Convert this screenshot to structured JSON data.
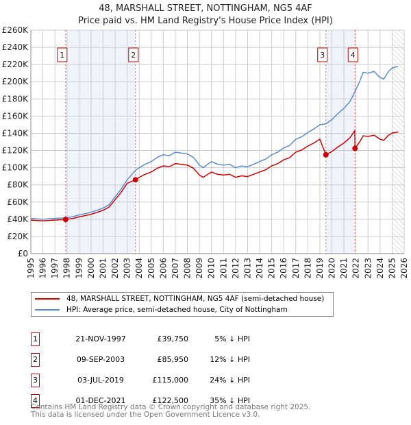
{
  "chart_data": {
    "type": "line",
    "title": "48, MARSHALL STREET, NOTTINGHAM, NG5 4AF",
    "subtitle": "Price paid vs. HM Land Registry's House Price Index (HPI)",
    "xlim": [
      1995,
      2026
    ],
    "ylim": [
      0,
      260000
    ],
    "yticks": [
      "£0",
      "£20K",
      "£40K",
      "£60K",
      "£80K",
      "£100K",
      "£120K",
      "£140K",
      "£160K",
      "£180K",
      "£200K",
      "£220K",
      "£240K",
      "£260K"
    ],
    "xticks": [
      "1995",
      "1996",
      "1997",
      "1998",
      "1999",
      "2000",
      "2001",
      "2002",
      "2003",
      "2004",
      "2005",
      "2006",
      "2007",
      "2008",
      "2009",
      "2010",
      "2011",
      "2012",
      "2013",
      "2014",
      "2015",
      "2016",
      "2017",
      "2018",
      "2019",
      "2020",
      "2021",
      "2022",
      "2023",
      "2024",
      "2025",
      "2026"
    ],
    "hpi_series": {
      "name": "HPI: Average price, semi-detached house, City of Nottingham",
      "color": "#5b8bd0",
      "x": [
        1995,
        1996,
        1997,
        1997.9,
        1998.5,
        1999,
        2000,
        2001,
        2001.5,
        2002,
        2002.5,
        2003,
        2003.7,
        2004,
        2004.5,
        2005,
        2005.5,
        2006,
        2006.5,
        2007,
        2007.5,
        2008,
        2008.5,
        2009,
        2009.3,
        2010,
        2010.5,
        2011,
        2011.5,
        2012,
        2012.5,
        2013,
        2013.5,
        2014,
        2014.5,
        2015,
        2015.5,
        2016,
        2016.5,
        2017,
        2017.5,
        2018,
        2018.5,
        2019,
        2019.5,
        2020,
        2020.5,
        2021,
        2021.5,
        2021.9,
        2022.3,
        2022.6,
        2023,
        2023.5,
        2024,
        2024.3,
        2024.7,
        2025,
        2025.5
      ],
      "y": [
        41000,
        40000,
        41000,
        41800,
        43000,
        45000,
        48000,
        53000,
        57000,
        66000,
        75000,
        86000,
        97000,
        100000,
        104000,
        107000,
        112000,
        115000,
        114000,
        118000,
        117000,
        116000,
        112000,
        103000,
        100000,
        107000,
        104000,
        103000,
        104000,
        100000,
        102000,
        101000,
        104000,
        107000,
        110000,
        115000,
        118000,
        123000,
        126000,
        133000,
        136000,
        141000,
        145000,
        150000,
        151000,
        156000,
        163000,
        169000,
        177000,
        188000,
        200000,
        211000,
        210000,
        212000,
        205000,
        203000,
        212000,
        216000,
        218000
      ]
    },
    "property_series": {
      "name": "48, MARSHALL STREET, NOTTINGHAM, NG5 4AF (semi-detached house)",
      "color": "#cc0000"
    },
    "sales": [
      {
        "id": "1",
        "x": 1997.89,
        "date": "21-NOV-1997",
        "price": 39750,
        "price_label": "£39,750",
        "pct": "5% ↓ HPI"
      },
      {
        "id": "2",
        "x": 2003.69,
        "date": "09-SEP-2003",
        "price": 85950,
        "price_label": "£85,950",
        "pct": "12% ↓ HPI"
      },
      {
        "id": "3",
        "x": 2019.5,
        "date": "03-JUL-2019",
        "price": 115000,
        "price_label": "£115,000",
        "pct": "24% ↓ HPI"
      },
      {
        "id": "4",
        "x": 2021.92,
        "date": "01-DEC-2021",
        "price": 122500,
        "price_label": "£122,500",
        "pct": "35% ↓ HPI"
      }
    ],
    "shaded": [
      [
        1997.89,
        2003.69
      ],
      [
        2019.5,
        2021.92
      ]
    ],
    "hatched_from": 2025.0
  },
  "legend": {
    "property": "48, MARSHALL STREET, NOTTINGHAM, NG5 4AF (semi-detached house)",
    "hpi": "HPI: Average price, semi-detached house, City of Nottingham"
  },
  "footer": {
    "line1": "Contains HM Land Registry data © Crown copyright and database right 2025.",
    "line2": "This data is licensed under the Open Government Licence v3.0."
  }
}
